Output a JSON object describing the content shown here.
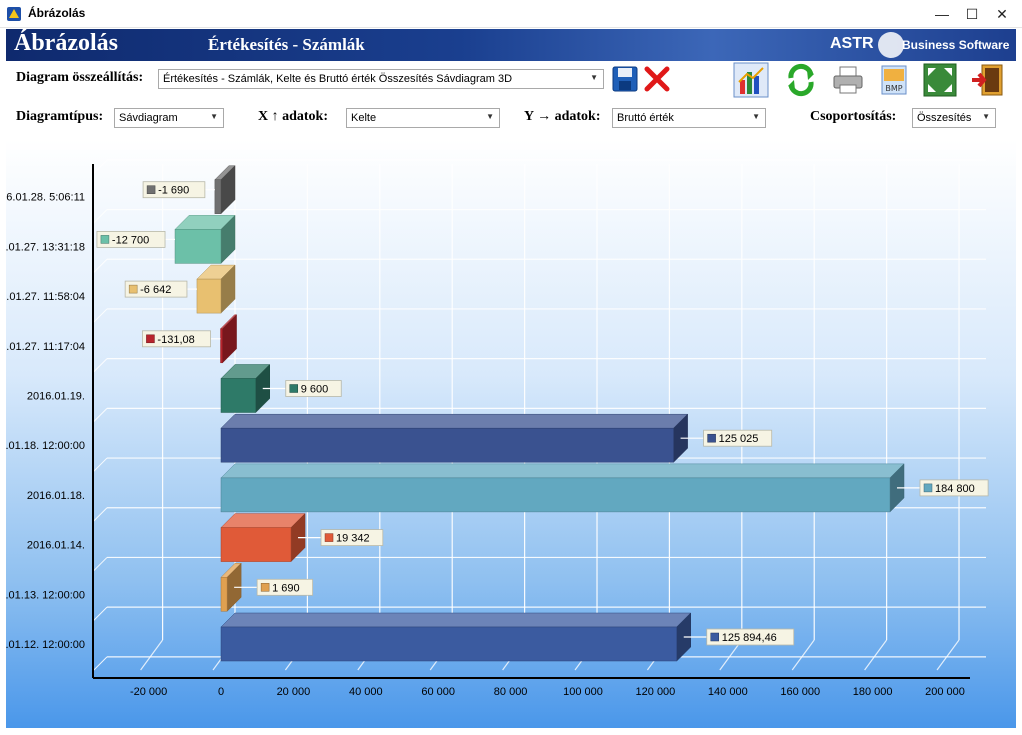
{
  "window": {
    "title": "Ábrázolás",
    "minimize": "—",
    "maximize": "☐",
    "close": "✕"
  },
  "banner": {
    "title": "Ábrázolás",
    "subtitle": "Értékesítés - Számlák",
    "brand": "ASTR",
    "brand_sub": "Business Software"
  },
  "controls": {
    "diagram_label": "Diagram összeállítás:",
    "diagram_value": "Értékesítés - Számlák, Kelte és Bruttó érték Összesítés Sávdiagram 3D",
    "type_label": "Diagramtípus:",
    "type_value": "Sávdiagram",
    "x_label": "X ↑ adatok:",
    "x_value": "Kelte",
    "y_label": "Y → adatok:",
    "y_value": "Bruttó érték",
    "group_label": "Csoportosítás:",
    "group_value": "Összesítés"
  },
  "toolbar_icons": [
    "save-icon",
    "delete-icon",
    "chart-icon",
    "refresh-icon",
    "print-icon",
    "bmp-export-icon",
    "fullscreen-icon",
    "exit-icon"
  ],
  "chart_data": {
    "type": "bar",
    "orientation": "horizontal",
    "style": "3d",
    "grid": true,
    "xlim": [
      -20000,
      200000
    ],
    "x_ticks": [
      "-20 000",
      "0",
      "20 000",
      "40 000",
      "60 000",
      "80 000",
      "100 000",
      "120 000",
      "140 000",
      "160 000",
      "180 000",
      "200 000"
    ],
    "x_tick_values": [
      -20000,
      0,
      20000,
      40000,
      60000,
      80000,
      100000,
      120000,
      140000,
      160000,
      180000,
      200000
    ],
    "categories": [
      ".01.12. 12:00:00",
      ".01.13. 12:00:00",
      "2016.01.14.",
      "2016.01.18.",
      ".01.18. 12:00:00",
      "2016.01.19.",
      ".01.27. 11:17:04",
      ".01.27. 11:58:04",
      ".01.27. 13:31:18",
      "6.01.28. 5:06:11"
    ],
    "values": [
      125894.46,
      1690,
      19342,
      184800,
      125025,
      9600,
      -131.08,
      -6642,
      -12700,
      -1690
    ],
    "labels": [
      "125 894,46",
      "1 690",
      "19 342",
      "184 800",
      "125 025",
      "9 600",
      "-131,08",
      "-6 642",
      "-12 700",
      "-1 690"
    ],
    "colors": [
      "#3b5ba0",
      "#e0a050",
      "#e05a38",
      "#62a8c0",
      "#3a5290",
      "#2e7a68",
      "#b8242c",
      "#e8c070",
      "#6cc0a8",
      "#707070"
    ]
  }
}
